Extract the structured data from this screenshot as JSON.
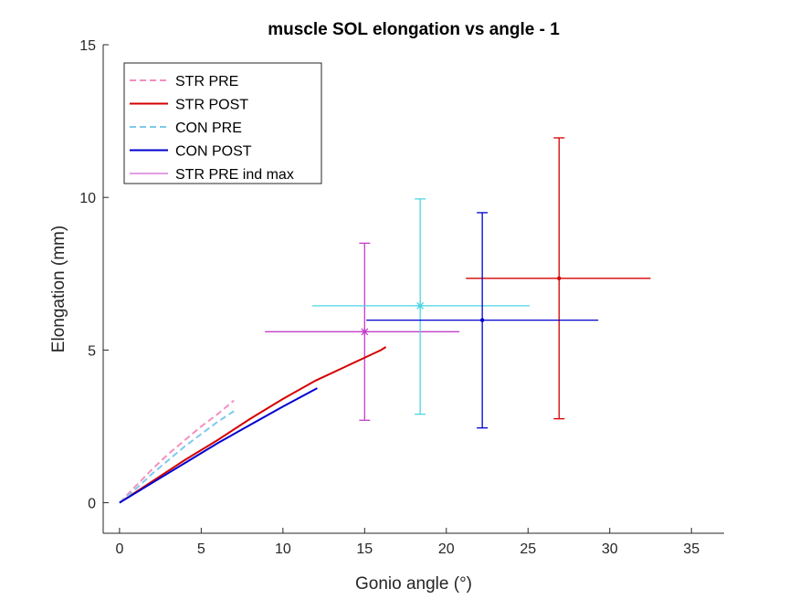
{
  "chart_data": {
    "type": "line",
    "title": "muscle SOL elongation vs angle - 1",
    "xlabel": "Gonio angle (°)",
    "ylabel": "Elongation (mm)",
    "xlim": [
      -1,
      37
    ],
    "ylim": [
      -1,
      15
    ],
    "xticks": [
      0,
      5,
      10,
      15,
      20,
      25,
      30,
      35
    ],
    "yticks": [
      0,
      5,
      10,
      15
    ],
    "grid": false,
    "legend_position": "top-left",
    "series": [
      {
        "name": "STR PRE",
        "color": "#f48fc0",
        "style": "dashed",
        "x": [
          0,
          1,
          2,
          3,
          4,
          5,
          6,
          7
        ],
        "y": [
          0,
          0.55,
          1.1,
          1.6,
          2.05,
          2.5,
          2.9,
          3.35
        ]
      },
      {
        "name": "STR POST",
        "color": "#d40000",
        "style": "solid",
        "x": [
          0,
          2,
          4,
          6,
          8,
          10,
          12,
          14,
          15,
          16,
          16.3
        ],
        "y": [
          0,
          0.7,
          1.4,
          2.05,
          2.75,
          3.4,
          4.0,
          4.5,
          4.75,
          5.0,
          5.1
        ]
      },
      {
        "name": "CON PRE",
        "color": "#7fc9ec",
        "style": "dashed",
        "x": [
          0,
          1,
          2,
          3,
          4,
          5,
          6,
          7
        ],
        "y": [
          0,
          0.45,
          0.95,
          1.4,
          1.85,
          2.25,
          2.65,
          3.0
        ]
      },
      {
        "name": "CON POST",
        "color": "#0000d0",
        "style": "solid",
        "x": [
          0,
          2,
          4,
          6,
          8,
          10,
          12.1
        ],
        "y": [
          0,
          0.65,
          1.3,
          1.95,
          2.55,
          3.15,
          3.75
        ]
      }
    ],
    "points": [
      {
        "name": "STR PRE ind max",
        "color": "#c43fc9",
        "marker": "asterisk",
        "x": 15.0,
        "y": 5.6,
        "xerr": [
          8.9,
          20.8
        ],
        "yerr": [
          2.7,
          8.5
        ]
      },
      {
        "color": "#4dd4e6",
        "marker": "asterisk",
        "x": 18.4,
        "y": 6.45,
        "xerr": [
          11.8,
          25.1
        ],
        "yerr": [
          2.9,
          9.95
        ]
      },
      {
        "color": "#d40000",
        "marker": "dot",
        "x": 26.9,
        "y": 7.35,
        "xerr": [
          21.2,
          32.5
        ],
        "yerr": [
          2.75,
          11.95
        ]
      },
      {
        "color": "#0000d0",
        "marker": "dot",
        "x": 22.2,
        "y": 5.98,
        "xerr": [
          15.1,
          29.3
        ],
        "yerr": [
          2.45,
          9.5
        ]
      }
    ]
  }
}
